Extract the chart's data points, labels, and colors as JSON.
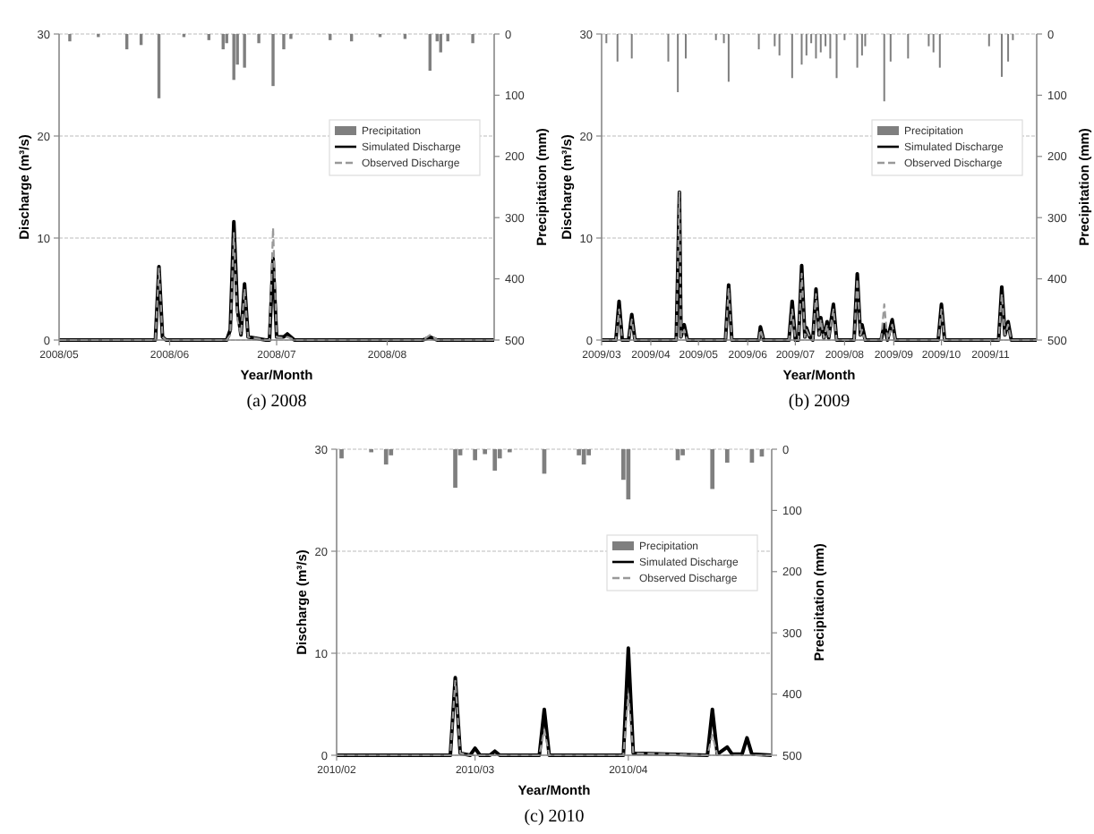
{
  "chart_data": [
    {
      "type": "line",
      "title": "(a) 2008",
      "xlabel": "Year/Month",
      "ylabel": "Discharge (m³/s)",
      "y2label": "Precipitation (mm)",
      "xlim": [
        "2008-05-01",
        "2008-08-31"
      ],
      "xticks": [
        {
          "value": "2008-05-01",
          "label": "2008/05"
        },
        {
          "value": "2008-06-01",
          "label": "2008/06"
        },
        {
          "value": "2008-07-01",
          "label": "2008/07"
        },
        {
          "value": "2008-08-01",
          "label": "2008/08"
        }
      ],
      "ylim": [
        0,
        30
      ],
      "yticks": [
        0,
        10,
        20,
        30
      ],
      "y2lim": [
        500,
        0
      ],
      "y2ticks": [
        0,
        100,
        200,
        300,
        400,
        500
      ],
      "grid": "y",
      "legend": "top right",
      "series": [
        {
          "name": "Precipitation",
          "type": "bar",
          "axis": "y2",
          "color": "#7f7f7f",
          "x": [
            "2008-05-04",
            "2008-05-12",
            "2008-05-20",
            "2008-05-24",
            "2008-05-29",
            "2008-06-05",
            "2008-06-12",
            "2008-06-16",
            "2008-06-17",
            "2008-06-19",
            "2008-06-20",
            "2008-06-22",
            "2008-06-26",
            "2008-06-30",
            "2008-07-03",
            "2008-07-05",
            "2008-07-16",
            "2008-07-22",
            "2008-07-30",
            "2008-08-06",
            "2008-08-13",
            "2008-08-15",
            "2008-08-16",
            "2008-08-18",
            "2008-08-25"
          ],
          "values": [
            12,
            5,
            25,
            18,
            105,
            5,
            10,
            25,
            15,
            75,
            50,
            55,
            15,
            85,
            25,
            8,
            10,
            12,
            5,
            8,
            60,
            12,
            30,
            12,
            15
          ]
        },
        {
          "name": "Simulated Discharge",
          "type": "line",
          "line_style": "solid",
          "color": "#000000",
          "x": [
            "2008-05-01",
            "2008-05-27",
            "2008-05-28",
            "2008-05-29",
            "2008-05-30",
            "2008-05-31",
            "2008-06-17",
            "2008-06-18",
            "2008-06-19",
            "2008-06-20",
            "2008-06-21",
            "2008-06-22",
            "2008-06-23",
            "2008-06-28",
            "2008-06-29",
            "2008-06-30",
            "2008-07-01",
            "2008-07-03",
            "2008-07-04",
            "2008-07-06",
            "2008-08-11",
            "2008-08-13",
            "2008-08-15",
            "2008-08-31"
          ],
          "values": [
            0,
            0,
            0,
            7.2,
            0.3,
            0,
            0,
            1,
            11.6,
            3,
            0.5,
            5.5,
            0.3,
            0,
            0,
            8,
            0.3,
            0.3,
            0.6,
            0,
            0,
            0.3,
            0,
            0
          ]
        },
        {
          "name": "Observed Discharge",
          "type": "line",
          "line_style": "dashed",
          "color": "#999999",
          "x": [
            "2008-05-01",
            "2008-05-27",
            "2008-05-28",
            "2008-05-29",
            "2008-05-30",
            "2008-05-31",
            "2008-06-17",
            "2008-06-18",
            "2008-06-19",
            "2008-06-20",
            "2008-06-21",
            "2008-06-22",
            "2008-06-23",
            "2008-06-28",
            "2008-06-29",
            "2008-06-30",
            "2008-07-01",
            "2008-07-03",
            "2008-07-04",
            "2008-07-06",
            "2008-08-11",
            "2008-08-13",
            "2008-08-15",
            "2008-08-31"
          ],
          "values": [
            0,
            0,
            0,
            7,
            0.3,
            0,
            0,
            0.5,
            10.5,
            2,
            0.5,
            5,
            0.3,
            0,
            0,
            11,
            0.3,
            0.2,
            0.3,
            0,
            0,
            0.5,
            0,
            0
          ]
        }
      ]
    },
    {
      "type": "line",
      "title": "(b) 2009",
      "xlabel": "Year/Month",
      "ylabel": "Discharge (m³/s)",
      "y2label": "Precipitation (mm)",
      "xlim": [
        "2009-03-01",
        "2009-11-30"
      ],
      "xticks": [
        {
          "value": "2009-03-01",
          "label": "2009/03"
        },
        {
          "value": "2009-04-01",
          "label": "2009/04"
        },
        {
          "value": "2009-05-01",
          "label": "2009/05"
        },
        {
          "value": "2009-06-01",
          "label": "2009/06"
        },
        {
          "value": "2009-07-01",
          "label": "2009/07"
        },
        {
          "value": "2009-08-01",
          "label": "2009/08"
        },
        {
          "value": "2009-09-01",
          "label": "2009/09"
        },
        {
          "value": "2009-10-01",
          "label": "2009/10"
        },
        {
          "value": "2009-11-01",
          "label": "2009/11"
        }
      ],
      "ylim": [
        0,
        30
      ],
      "yticks": [
        0,
        10,
        20,
        30
      ],
      "y2lim": [
        500,
        0
      ],
      "y2ticks": [
        0,
        100,
        200,
        300,
        400,
        500
      ],
      "grid": "y",
      "legend": "top right",
      "series": [
        {
          "name": "Precipitation",
          "type": "bar",
          "axis": "y2",
          "color": "#7f7f7f",
          "x": [
            "2009-03-04",
            "2009-03-11",
            "2009-03-20",
            "2009-04-12",
            "2009-04-18",
            "2009-04-23",
            "2009-05-12",
            "2009-05-17",
            "2009-05-20",
            "2009-06-08",
            "2009-06-18",
            "2009-06-21",
            "2009-06-29",
            "2009-07-05",
            "2009-07-08",
            "2009-07-11",
            "2009-07-14",
            "2009-07-17",
            "2009-07-20",
            "2009-07-23",
            "2009-07-27",
            "2009-08-01",
            "2009-08-09",
            "2009-08-12",
            "2009-08-14",
            "2009-08-26",
            "2009-08-30",
            "2009-09-10",
            "2009-09-23",
            "2009-09-26",
            "2009-09-30",
            "2009-10-31",
            "2009-11-08",
            "2009-11-12",
            "2009-11-15"
          ],
          "values": [
            15,
            45,
            40,
            45,
            95,
            40,
            10,
            15,
            78,
            25,
            20,
            35,
            72,
            50,
            35,
            15,
            40,
            30,
            20,
            40,
            72,
            10,
            55,
            35,
            20,
            110,
            45,
            40,
            20,
            30,
            55,
            20,
            70,
            45,
            10
          ]
        },
        {
          "name": "Simulated Discharge",
          "type": "line",
          "line_style": "solid",
          "color": "#000000",
          "x": [
            "2009-03-01",
            "2009-03-10",
            "2009-03-12",
            "2009-03-14",
            "2009-03-18",
            "2009-03-20",
            "2009-03-22",
            "2009-04-17",
            "2009-04-19",
            "2009-04-20",
            "2009-04-22",
            "2009-04-24",
            "2009-05-18",
            "2009-05-20",
            "2009-05-22",
            "2009-06-08",
            "2009-06-09",
            "2009-06-11",
            "2009-06-27",
            "2009-06-29",
            "2009-07-01",
            "2009-07-03",
            "2009-07-05",
            "2009-07-07",
            "2009-07-08",
            "2009-07-10",
            "2009-07-12",
            "2009-07-14",
            "2009-07-16",
            "2009-07-17",
            "2009-07-19",
            "2009-07-21",
            "2009-07-22",
            "2009-07-25",
            "2009-07-27",
            "2009-08-07",
            "2009-08-09",
            "2009-08-11",
            "2009-08-12",
            "2009-08-14",
            "2009-08-24",
            "2009-08-26",
            "2009-08-28",
            "2009-08-31",
            "2009-09-02",
            "2009-09-29",
            "2009-10-01",
            "2009-10-03",
            "2009-11-06",
            "2009-11-08",
            "2009-11-10",
            "2009-11-12",
            "2009-11-14",
            "2009-11-30"
          ],
          "values": [
            0,
            0,
            3.8,
            0,
            0,
            2.5,
            0,
            0,
            14.5,
            0.3,
            1.5,
            0,
            0,
            5.4,
            0,
            0,
            1.3,
            0,
            0,
            3.8,
            0,
            0,
            7.3,
            0.3,
            1.2,
            0.3,
            0,
            5,
            0.5,
            2.2,
            0.2,
            1.8,
            0.2,
            3.5,
            0,
            0,
            6.5,
            0.5,
            1.5,
            0,
            0,
            1.5,
            0,
            2,
            0,
            0,
            3.5,
            0,
            0,
            5.2,
            0.5,
            1.8,
            0,
            0
          ]
        },
        {
          "name": "Observed Discharge",
          "type": "line",
          "line_style": "dashed",
          "color": "#999999",
          "x": [
            "2009-03-01",
            "2009-03-10",
            "2009-03-12",
            "2009-03-14",
            "2009-03-18",
            "2009-03-20",
            "2009-03-22",
            "2009-04-17",
            "2009-04-19",
            "2009-04-20",
            "2009-04-22",
            "2009-04-24",
            "2009-05-18",
            "2009-05-20",
            "2009-05-22",
            "2009-06-08",
            "2009-06-09",
            "2009-06-11",
            "2009-06-27",
            "2009-06-29",
            "2009-07-01",
            "2009-07-03",
            "2009-07-05",
            "2009-07-07",
            "2009-07-08",
            "2009-07-10",
            "2009-07-12",
            "2009-07-14",
            "2009-07-16",
            "2009-07-17",
            "2009-07-19",
            "2009-07-21",
            "2009-07-22",
            "2009-07-25",
            "2009-07-27",
            "2009-08-07",
            "2009-08-09",
            "2009-08-11",
            "2009-08-12",
            "2009-08-14",
            "2009-08-24",
            "2009-08-26",
            "2009-08-28",
            "2009-08-31",
            "2009-09-02",
            "2009-09-29",
            "2009-10-01",
            "2009-10-03",
            "2009-11-06",
            "2009-11-08",
            "2009-11-10",
            "2009-11-12",
            "2009-11-14",
            "2009-11-30"
          ],
          "values": [
            0,
            0,
            3,
            0,
            0,
            2,
            0,
            0,
            14.5,
            0.3,
            1,
            0,
            0,
            5,
            0,
            0,
            1,
            0,
            0,
            3,
            0,
            0,
            6.5,
            0.3,
            1,
            0.3,
            0,
            4.5,
            0.5,
            2,
            0.2,
            1.5,
            0.2,
            3,
            0,
            0,
            6,
            0.5,
            1,
            0,
            0,
            3.5,
            0,
            1.5,
            0,
            0,
            3,
            0,
            0,
            4.5,
            0.5,
            1.5,
            0,
            0
          ]
        }
      ]
    },
    {
      "type": "line",
      "title": "(c) 2010",
      "xlabel": "Year/Month",
      "ylabel": "Discharge (m³/s)",
      "y2label": "Precipitation (mm)",
      "xlim": [
        "2010-02-01",
        "2010-04-30"
      ],
      "xticks": [
        {
          "value": "2010-02-01",
          "label": "2010/02"
        },
        {
          "value": "2010-03-01",
          "label": "2010/03"
        },
        {
          "value": "2010-04-01",
          "label": "2010/04"
        }
      ],
      "ylim": [
        0,
        30
      ],
      "yticks": [
        0,
        10,
        20,
        30
      ],
      "y2lim": [
        500,
        0
      ],
      "y2ticks": [
        0,
        100,
        200,
        300,
        400,
        500
      ],
      "grid": "y",
      "legend": "top right",
      "series": [
        {
          "name": "Precipitation",
          "type": "bar",
          "axis": "y2",
          "color": "#7f7f7f",
          "x": [
            "2010-02-02",
            "2010-02-08",
            "2010-02-11",
            "2010-02-12",
            "2010-02-25",
            "2010-02-26",
            "2010-03-01",
            "2010-03-03",
            "2010-03-05",
            "2010-03-06",
            "2010-03-08",
            "2010-03-15",
            "2010-03-22",
            "2010-03-23",
            "2010-03-24",
            "2010-03-31",
            "2010-04-01",
            "2010-04-11",
            "2010-04-12",
            "2010-04-18",
            "2010-04-21",
            "2010-04-26",
            "2010-04-28"
          ],
          "values": [
            15,
            5,
            25,
            10,
            63,
            10,
            18,
            8,
            35,
            15,
            5,
            40,
            10,
            25,
            10,
            50,
            82,
            18,
            10,
            65,
            22,
            22,
            12
          ]
        },
        {
          "name": "Simulated Discharge",
          "type": "line",
          "line_style": "solid",
          "color": "#000000",
          "x": [
            "2010-02-01",
            "2010-02-24",
            "2010-02-25",
            "2010-02-26",
            "2010-02-28",
            "2010-03-01",
            "2010-03-02",
            "2010-03-04",
            "2010-03-05",
            "2010-03-06",
            "2010-03-14",
            "2010-03-15",
            "2010-03-16",
            "2010-03-31",
            "2010-04-01",
            "2010-04-02",
            "2010-04-17",
            "2010-04-18",
            "2010-04-19",
            "2010-04-21",
            "2010-04-22",
            "2010-04-24",
            "2010-04-25",
            "2010-04-26",
            "2010-04-30"
          ],
          "values": [
            0,
            0,
            7.6,
            0.2,
            0,
            0.7,
            0,
            0,
            0.4,
            0,
            0,
            4.5,
            0,
            0,
            10.5,
            0.2,
            0,
            4.5,
            0.1,
            0.8,
            0.1,
            0.1,
            1.7,
            0.1,
            0
          ]
        },
        {
          "name": "Observed Discharge",
          "type": "line",
          "line_style": "dashed",
          "color": "#999999",
          "x": [
            "2010-02-01",
            "2010-02-24",
            "2010-02-25",
            "2010-02-26",
            "2010-02-28",
            "2010-03-01",
            "2010-03-02",
            "2010-03-04",
            "2010-03-05",
            "2010-03-06",
            "2010-03-14",
            "2010-03-15",
            "2010-03-16",
            "2010-03-31",
            "2010-04-01",
            "2010-04-02",
            "2010-04-17",
            "2010-04-18",
            "2010-04-19",
            "2010-04-21",
            "2010-04-22",
            "2010-04-24",
            "2010-04-25",
            "2010-04-26",
            "2010-04-30"
          ],
          "values": [
            0,
            0,
            7.3,
            0.2,
            0,
            0,
            0,
            0,
            0,
            0,
            0,
            2.5,
            0,
            0,
            6,
            0.2,
            0,
            2,
            0,
            0,
            0,
            0,
            0,
            0,
            0
          ]
        }
      ]
    }
  ]
}
